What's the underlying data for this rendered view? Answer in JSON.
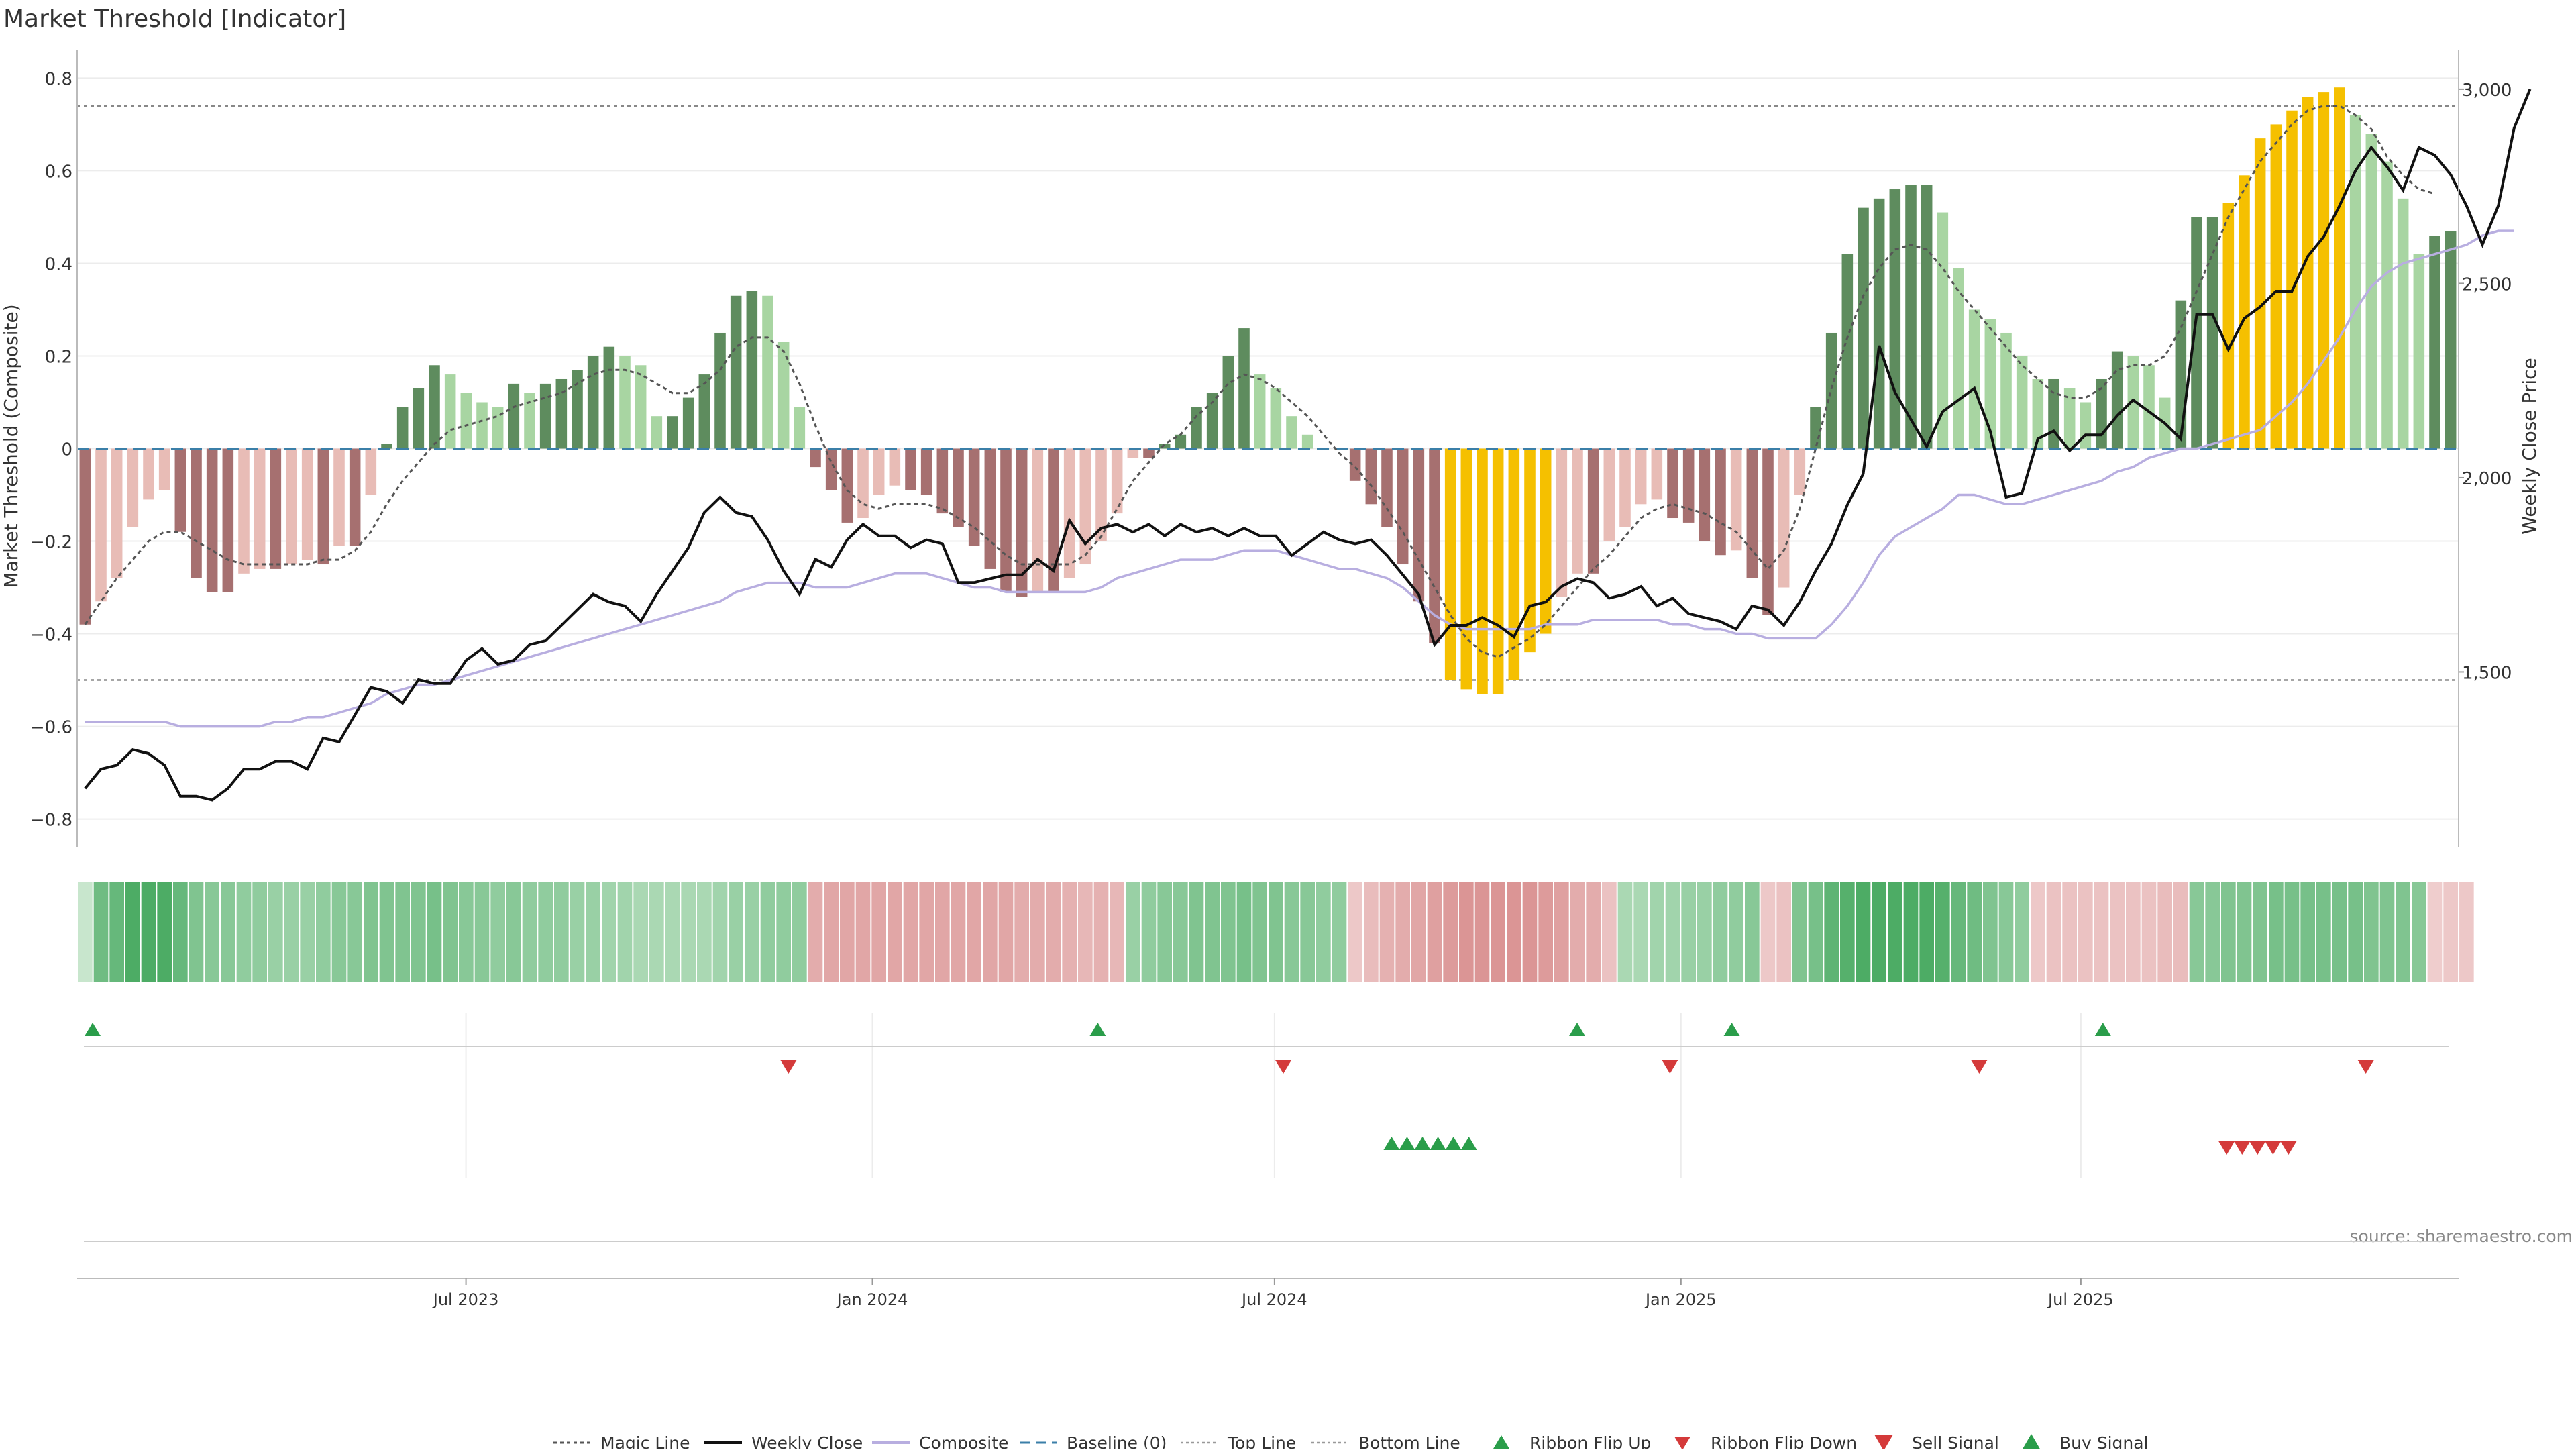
{
  "title": "Market Threshold [Indicator]",
  "source": "source: sharemaestro.com",
  "colors": {
    "strong_green": "#5e8c5e",
    "light_green": "#a8d5a2",
    "strong_red": "#a67070",
    "light_red": "#e8bcb6",
    "gold": "#f5c000",
    "weekly_close": "#111111",
    "composite": "#b8aee0",
    "magic_line": "#555555",
    "baseline": "#3b7fa8",
    "buy": "#2a9d4a",
    "sell": "#d43a3a"
  },
  "chart_data": {
    "type": "bar",
    "title": "Market Threshold [Indicator]",
    "ylabel": "Market Threshold (Composite)",
    "y2label": "Weekly Close Price",
    "ylim": [
      -0.86,
      0.86
    ],
    "y2lim": [
      1050,
      3100
    ],
    "yticks": [
      -0.8,
      -0.6,
      -0.4,
      -0.2,
      0,
      0.2,
      0.4,
      0.6,
      0.8
    ],
    "ytick_labels": [
      "−0.8",
      "−0.6",
      "−0.4",
      "−0.2",
      "0",
      "0.2",
      "0.4",
      "0.6",
      "0.8"
    ],
    "y2ticks": [
      1500,
      2000,
      2500,
      3000
    ],
    "y2tick_labels": [
      "1,500",
      "2,000",
      "2,500",
      "3,000"
    ],
    "x_start": "2023-01-06",
    "x_end": "2025-12-19",
    "xticks": [
      "2023-07-01",
      "2024-01-01",
      "2024-07-01",
      "2025-01-01",
      "2025-07-01"
    ],
    "xtick_labels": [
      "Jul 2023",
      "Jan 2024",
      "Jul 2024",
      "Jan 2025",
      "Jul 2025"
    ],
    "top_line": 0.74,
    "bottom_line": -0.5,
    "grid": true,
    "legend_position": "bottom-center",
    "legend": [
      "Magic Line",
      "Weekly Close",
      "Composite",
      "Baseline (0)",
      "Top Line",
      "Bottom Line",
      "Ribbon Flip Up",
      "Ribbon Flip Down",
      "Sell Signal",
      "Buy Signal"
    ],
    "series": [
      {
        "name": "Histogram",
        "kind": "bar",
        "values": [
          -0.38,
          -0.33,
          -0.28,
          -0.17,
          -0.11,
          -0.09,
          -0.18,
          -0.28,
          -0.31,
          -0.31,
          -0.27,
          -0.26,
          -0.26,
          -0.25,
          -0.24,
          -0.25,
          -0.21,
          -0.21,
          -0.1,
          0.01,
          0.09,
          0.13,
          0.18,
          0.16,
          0.12,
          0.1,
          0.09,
          0.14,
          0.12,
          0.14,
          0.15,
          0.17,
          0.2,
          0.22,
          0.2,
          0.18,
          0.07,
          0.07,
          0.11,
          0.16,
          0.25,
          0.33,
          0.34,
          0.33,
          0.23,
          0.09,
          -0.04,
          -0.09,
          -0.16,
          -0.15,
          -0.1,
          -0.08,
          -0.09,
          -0.1,
          -0.14,
          -0.17,
          -0.21,
          -0.26,
          -0.31,
          -0.32,
          -0.31,
          -0.31,
          -0.28,
          -0.25,
          -0.2,
          -0.14,
          -0.02,
          -0.02,
          0.01,
          0.03,
          0.09,
          0.12,
          0.2,
          0.26,
          0.16,
          0.13,
          0.07,
          0.03,
          0.0,
          0.0,
          -0.07,
          -0.12,
          -0.17,
          -0.25,
          -0.33,
          -0.42,
          -0.5,
          -0.52,
          -0.53,
          -0.53,
          -0.5,
          -0.44,
          -0.4,
          -0.32,
          -0.27,
          -0.27,
          -0.2,
          -0.17,
          -0.12,
          -0.11,
          -0.15,
          -0.16,
          -0.2,
          -0.23,
          -0.22,
          -0.28,
          -0.36,
          -0.3,
          -0.1,
          0.09,
          0.25,
          0.42,
          0.52,
          0.54,
          0.56,
          0.57,
          0.57,
          0.51,
          0.39,
          0.3,
          0.28,
          0.25,
          0.2,
          0.15,
          0.15,
          0.13,
          0.1,
          0.15,
          0.21,
          0.2,
          0.18,
          0.11,
          0.32,
          0.5,
          0.5,
          0.53,
          0.59,
          0.67,
          0.7,
          0.73,
          0.76,
          0.77,
          0.78,
          0.72,
          0.68,
          0.62,
          0.54,
          0.42,
          0.46,
          0.47
        ]
      },
      {
        "name": "Magic Line",
        "kind": "line",
        "values": [
          -0.38,
          -0.33,
          -0.28,
          -0.24,
          -0.2,
          -0.18,
          -0.18,
          -0.2,
          -0.22,
          -0.24,
          -0.25,
          -0.25,
          -0.25,
          -0.25,
          -0.25,
          -0.24,
          -0.24,
          -0.22,
          -0.18,
          -0.12,
          -0.07,
          -0.03,
          0.01,
          0.04,
          0.05,
          0.06,
          0.07,
          0.09,
          0.1,
          0.11,
          0.12,
          0.14,
          0.16,
          0.17,
          0.17,
          0.16,
          0.14,
          0.12,
          0.12,
          0.14,
          0.17,
          0.22,
          0.24,
          0.24,
          0.21,
          0.14,
          0.05,
          -0.03,
          -0.09,
          -0.12,
          -0.13,
          -0.12,
          -0.12,
          -0.12,
          -0.13,
          -0.15,
          -0.17,
          -0.2,
          -0.23,
          -0.25,
          -0.25,
          -0.25,
          -0.25,
          -0.23,
          -0.19,
          -0.13,
          -0.07,
          -0.03,
          0.01,
          0.03,
          0.07,
          0.1,
          0.14,
          0.16,
          0.15,
          0.13,
          0.1,
          0.07,
          0.03,
          -0.01,
          -0.04,
          -0.08,
          -0.13,
          -0.18,
          -0.24,
          -0.3,
          -0.36,
          -0.41,
          -0.44,
          -0.45,
          -0.43,
          -0.41,
          -0.38,
          -0.34,
          -0.3,
          -0.26,
          -0.23,
          -0.19,
          -0.15,
          -0.13,
          -0.12,
          -0.13,
          -0.14,
          -0.16,
          -0.18,
          -0.22,
          -0.26,
          -0.22,
          -0.13,
          0.0,
          0.13,
          0.24,
          0.33,
          0.39,
          0.43,
          0.44,
          0.43,
          0.39,
          0.34,
          0.3,
          0.26,
          0.22,
          0.18,
          0.15,
          0.12,
          0.11,
          0.11,
          0.13,
          0.17,
          0.18,
          0.18,
          0.2,
          0.26,
          0.34,
          0.42,
          0.5,
          0.56,
          0.62,
          0.66,
          0.7,
          0.73,
          0.74,
          0.74,
          0.72,
          0.69,
          0.63,
          0.59,
          0.56,
          0.55
        ]
      },
      {
        "name": "Weekly Close",
        "kind": "line",
        "axis": "right",
        "values": [
          1200,
          1250,
          1260,
          1300,
          1290,
          1260,
          1180,
          1180,
          1170,
          1200,
          1250,
          1250,
          1270,
          1270,
          1250,
          1330,
          1320,
          1390,
          1460,
          1450,
          1420,
          1480,
          1470,
          1470,
          1530,
          1560,
          1520,
          1530,
          1570,
          1580,
          1620,
          1660,
          1700,
          1680,
          1670,
          1630,
          1700,
          1760,
          1820,
          1910,
          1950,
          1910,
          1900,
          1840,
          1760,
          1700,
          1790,
          1770,
          1840,
          1880,
          1850,
          1850,
          1820,
          1840,
          1830,
          1730,
          1730,
          1740,
          1750,
          1750,
          1790,
          1760,
          1890,
          1830,
          1870,
          1880,
          1860,
          1880,
          1850,
          1880,
          1860,
          1870,
          1850,
          1870,
          1850,
          1850,
          1800,
          1830,
          1860,
          1840,
          1830,
          1840,
          1800,
          1750,
          1700,
          1570,
          1620,
          1620,
          1640,
          1620,
          1590,
          1670,
          1680,
          1720,
          1740,
          1730,
          1690,
          1700,
          1720,
          1670,
          1690,
          1650,
          1640,
          1630,
          1610,
          1670,
          1660,
          1620,
          1680,
          1760,
          1830,
          1930,
          2010,
          2340,
          2220,
          2150,
          2080,
          2170,
          2200,
          2230,
          2120,
          1950,
          1960,
          2100,
          2120,
          2070,
          2110,
          2110,
          2160,
          2200,
          2170,
          2140,
          2100,
          2420,
          2420,
          2330,
          2410,
          2440,
          2480,
          2480,
          2570,
          2620,
          2700,
          2790,
          2850,
          2800,
          2740,
          2850,
          2830,
          2780,
          2700,
          2600,
          2700,
          2900,
          3000
        ]
      },
      {
        "name": "Composite",
        "kind": "line",
        "values": [
          -0.59,
          -0.59,
          -0.59,
          -0.59,
          -0.59,
          -0.59,
          -0.6,
          -0.6,
          -0.6,
          -0.6,
          -0.6,
          -0.6,
          -0.59,
          -0.59,
          -0.58,
          -0.58,
          -0.57,
          -0.56,
          -0.55,
          -0.53,
          -0.52,
          -0.51,
          -0.51,
          -0.5,
          -0.49,
          -0.48,
          -0.47,
          -0.46,
          -0.45,
          -0.44,
          -0.43,
          -0.42,
          -0.41,
          -0.4,
          -0.39,
          -0.38,
          -0.37,
          -0.36,
          -0.35,
          -0.34,
          -0.33,
          -0.31,
          -0.3,
          -0.29,
          -0.29,
          -0.29,
          -0.3,
          -0.3,
          -0.3,
          -0.29,
          -0.28,
          -0.27,
          -0.27,
          -0.27,
          -0.28,
          -0.29,
          -0.3,
          -0.3,
          -0.31,
          -0.31,
          -0.31,
          -0.31,
          -0.31,
          -0.31,
          -0.3,
          -0.28,
          -0.27,
          -0.26,
          -0.25,
          -0.24,
          -0.24,
          -0.24,
          -0.23,
          -0.22,
          -0.22,
          -0.22,
          -0.23,
          -0.24,
          -0.25,
          -0.26,
          -0.26,
          -0.27,
          -0.28,
          -0.3,
          -0.33,
          -0.36,
          -0.38,
          -0.39,
          -0.39,
          -0.39,
          -0.39,
          -0.39,
          -0.38,
          -0.38,
          -0.38,
          -0.37,
          -0.37,
          -0.37,
          -0.37,
          -0.37,
          -0.38,
          -0.38,
          -0.39,
          -0.39,
          -0.4,
          -0.4,
          -0.41,
          -0.41,
          -0.41,
          -0.41,
          -0.38,
          -0.34,
          -0.29,
          -0.23,
          -0.19,
          -0.17,
          -0.15,
          -0.13,
          -0.1,
          -0.1,
          -0.11,
          -0.12,
          -0.12,
          -0.11,
          -0.1,
          -0.09,
          -0.08,
          -0.07,
          -0.05,
          -0.04,
          -0.02,
          -0.01,
          0.0,
          0.0,
          0.01,
          0.02,
          0.03,
          0.04,
          0.07,
          0.1,
          0.14,
          0.19,
          0.24,
          0.3,
          0.35,
          0.38,
          0.4,
          0.41,
          0.42,
          0.43,
          0.44,
          0.46,
          0.47,
          0.47
        ]
      }
    ],
    "ribbon": [
      0.12,
      0.65,
      0.7,
      0.85,
      0.85,
      0.85,
      0.7,
      0.55,
      0.5,
      0.5,
      0.45,
      0.45,
      0.4,
      0.4,
      0.4,
      0.45,
      0.5,
      0.5,
      0.55,
      0.55,
      0.55,
      0.55,
      0.6,
      0.55,
      0.5,
      0.5,
      0.45,
      0.5,
      0.45,
      0.45,
      0.45,
      0.4,
      0.4,
      0.35,
      0.35,
      0.3,
      0.3,
      0.3,
      0.3,
      0.3,
      0.35,
      0.4,
      0.4,
      0.45,
      0.45,
      0.45,
      -0.45,
      -0.5,
      -0.5,
      -0.5,
      -0.5,
      -0.5,
      -0.5,
      -0.5,
      -0.5,
      -0.5,
      -0.5,
      -0.5,
      -0.5,
      -0.45,
      -0.45,
      -0.45,
      -0.4,
      -0.35,
      -0.4,
      -0.35,
      0.4,
      0.45,
      0.5,
      0.5,
      0.55,
      0.55,
      0.55,
      0.6,
      0.55,
      0.55,
      0.5,
      0.5,
      0.45,
      0.45,
      -0.2,
      -0.3,
      -0.4,
      -0.45,
      -0.5,
      -0.55,
      -0.6,
      -0.65,
      -0.65,
      -0.65,
      -0.65,
      -0.65,
      -0.6,
      -0.55,
      -0.45,
      -0.45,
      -0.25,
      0.3,
      0.3,
      0.35,
      0.35,
      0.4,
      0.4,
      0.45,
      0.45,
      0.5,
      -0.2,
      -0.25,
      0.55,
      0.6,
      0.75,
      0.8,
      0.85,
      0.85,
      0.85,
      0.85,
      0.85,
      0.8,
      0.7,
      0.65,
      0.55,
      0.5,
      0.45,
      -0.2,
      -0.25,
      -0.25,
      -0.25,
      -0.25,
      -0.25,
      -0.25,
      -0.25,
      -0.3,
      -0.3,
      0.5,
      0.5,
      0.55,
      0.55,
      0.55,
      0.6,
      0.6,
      0.6,
      0.6,
      0.6,
      0.6,
      0.55,
      0.55,
      0.55,
      0.5,
      -0.15,
      -0.2,
      -0.2
    ],
    "signals": {
      "ribbon_flip_up": [
        "2023-01-13",
        "2024-04-12",
        "2024-11-15",
        "2025-01-24",
        "2025-07-11"
      ],
      "ribbon_flip_down": [
        "2023-11-24",
        "2024-07-05",
        "2024-12-27",
        "2025-05-16",
        "2025-11-07"
      ],
      "buy_signal": [
        "2024-08-23",
        "2024-08-30",
        "2024-09-06",
        "2024-09-13",
        "2024-09-20",
        "2024-09-27"
      ],
      "sell_signal": [
        "2025-09-05",
        "2025-09-12",
        "2025-09-19",
        "2025-09-26",
        "2025-10-03"
      ]
    }
  }
}
